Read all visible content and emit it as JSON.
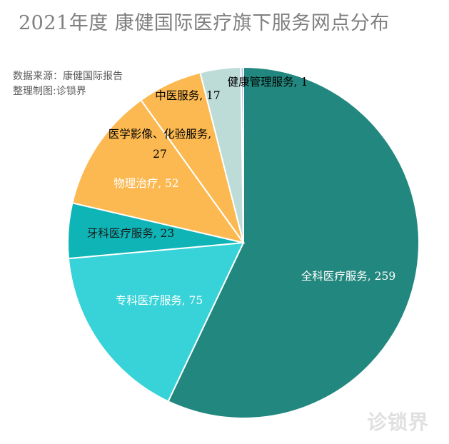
{
  "title": "2021年度 康健国际医疗旗下服务网点分布",
  "source": {
    "line1": "数据来源：康健国际报告",
    "line2": "整理制图:诊锁界"
  },
  "watermark": "诊锁界",
  "chart_data": {
    "type": "pie",
    "title": "2021年度 康健国际医疗旗下服务网点分布",
    "slices": [
      {
        "label": "全科医疗服务",
        "value": 259,
        "color": "#22877e",
        "text_color": "#ffffff",
        "display": "全科医疗服务, 259"
      },
      {
        "label": "专科医疗服务",
        "value": 75,
        "color": "#37d3d8",
        "text_color": "#ffffff",
        "display": "专科医疗服务, 75"
      },
      {
        "label": "牙科医疗服务",
        "value": 23,
        "color": "#0fb4b6",
        "text_color": "#1a1a1a",
        "display": "牙科医疗服务, 23"
      },
      {
        "label": "物理治疗",
        "value": 52,
        "color": "#fcb951",
        "text_color": "#ffffff",
        "display": "物理治疗, 52"
      },
      {
        "label": "医学影像、化验服务",
        "value": 27,
        "color": "#bddcd8",
        "text_color": "#000000",
        "display": "医学影像、化验服务,",
        "display2": "27"
      },
      {
        "label": "中医服务",
        "value": 17,
        "color": "#f2f2f2",
        "text_color": "#000000",
        "display": "中医服务, 17"
      },
      {
        "label": "健康管理服务",
        "value": 1,
        "color": "#9ebfea",
        "text_color": "#000000",
        "display": "健康管理服务, 1"
      }
    ]
  }
}
